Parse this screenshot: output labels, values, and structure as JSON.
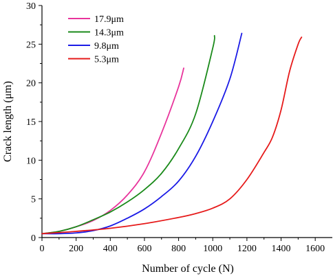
{
  "chart_data": {
    "type": "line",
    "title": "",
    "xlabel": "Number of cycle (N)",
    "ylabel": "Crack length (μm)",
    "xlim": [
      0,
      1700
    ],
    "ylim": [
      0,
      30
    ],
    "x_ticks": [
      "0",
      "200",
      "400",
      "600",
      "800",
      "1000",
      "1200",
      "1400",
      "1600"
    ],
    "y_ticks": [
      "0",
      "5",
      "10",
      "15",
      "20",
      "25",
      "30"
    ],
    "grid": false,
    "legend_position": "top-left",
    "series": [
      {
        "name": "17.9μm",
        "color": "#e8339b",
        "x": [
          0,
          100,
          200,
          300,
          400,
          500,
          600,
          700,
          800,
          830
        ],
        "y": [
          0.5,
          0.8,
          1.4,
          2.2,
          3.5,
          5.5,
          8.5,
          13.5,
          19.5,
          21.9
        ]
      },
      {
        "name": "14.3μm",
        "color": "#1a8a1a",
        "x": [
          0,
          100,
          200,
          300,
          400,
          500,
          600,
          700,
          800,
          900,
          1000,
          1010
        ],
        "y": [
          0.5,
          0.8,
          1.4,
          2.3,
          3.3,
          4.6,
          6.2,
          8.3,
          11.5,
          16.0,
          24.5,
          26.1
        ]
      },
      {
        "name": "9.8μm",
        "color": "#1a1ae6",
        "x": [
          0,
          100,
          200,
          300,
          400,
          500,
          600,
          700,
          800,
          900,
          1000,
          1100,
          1170
        ],
        "y": [
          0.5,
          0.5,
          0.6,
          0.9,
          1.5,
          2.5,
          3.7,
          5.3,
          7.3,
          10.5,
          15.0,
          20.5,
          26.4
        ]
      },
      {
        "name": "5.3μm",
        "color": "#e61a1a",
        "x": [
          0,
          200,
          400,
          600,
          800,
          900,
          1000,
          1100,
          1200,
          1300,
          1350,
          1400,
          1450,
          1500,
          1520
        ],
        "y": [
          0.5,
          0.8,
          1.2,
          1.8,
          2.6,
          3.1,
          3.8,
          5.0,
          7.5,
          11.0,
          13.0,
          16.5,
          21.5,
          25.0,
          25.9
        ]
      }
    ]
  }
}
